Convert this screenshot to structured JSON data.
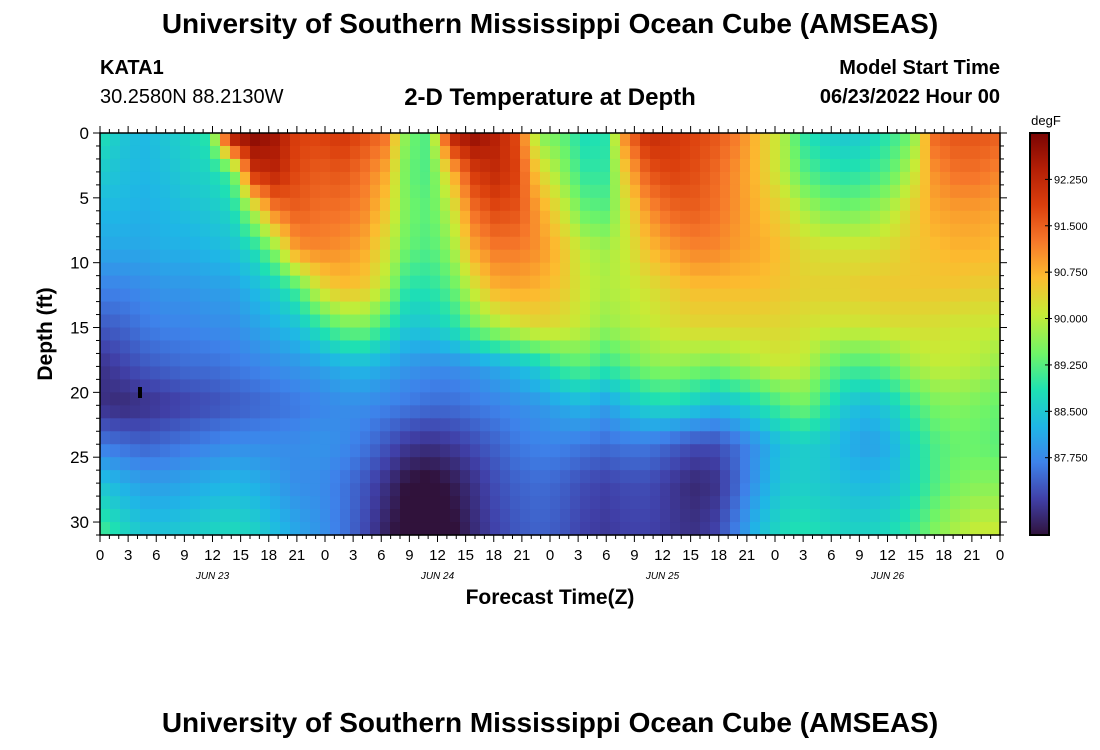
{
  "header": {
    "title": "University of Southern Mississippi Ocean Cube (AMSEAS)",
    "station": "KATA1",
    "coords": "30.2580N  88.2130W",
    "chart_title": "2-D Temperature at Depth",
    "start_label": "Model Start Time",
    "start_value": "06/23/2022 Hour 00"
  },
  "footer": {
    "title": "University of Southern Mississippi Ocean Cube (AMSEAS)"
  },
  "colors": {
    "colormap": [
      "#30123b",
      "#4040a8",
      "#3e82ea",
      "#1fb6e6",
      "#1ee0b3",
      "#6ef468",
      "#c6ec36",
      "#fcbc2f",
      "#f6782a",
      "#db3f0d",
      "#b41f06",
      "#7a0403"
    ]
  },
  "chart_data": {
    "type": "heatmap",
    "title": "2-D Temperature at Depth",
    "xlabel": "Forecast Time(Z)",
    "ylabel": "Depth (ft)",
    "x_hours": [
      0,
      3,
      6,
      9,
      12,
      15,
      18,
      21,
      24,
      27,
      30,
      33,
      36,
      39,
      42,
      45,
      48,
      51,
      54,
      57,
      60,
      63,
      66,
      69,
      72,
      75,
      78,
      81,
      84,
      87,
      90,
      93,
      96
    ],
    "xlim": [
      0,
      96
    ],
    "x_tick_labels": [
      "0",
      "3",
      "6",
      "9",
      "12",
      "15",
      "18",
      "21",
      "0",
      "3",
      "6",
      "9",
      "12",
      "15",
      "18",
      "21",
      "0",
      "3",
      "6",
      "9",
      "12",
      "15",
      "18",
      "21",
      "0",
      "3",
      "6",
      "9",
      "12",
      "15",
      "18",
      "21",
      "0"
    ],
    "day_labels": [
      {
        "hour": 12,
        "label": "JUN 23"
      },
      {
        "hour": 36,
        "label": "JUN 24"
      },
      {
        "hour": 60,
        "label": "JUN 25"
      },
      {
        "hour": 84,
        "label": "JUN 26"
      }
    ],
    "depths": [
      0,
      3,
      6,
      9,
      12,
      15,
      18,
      21,
      24,
      27,
      31
    ],
    "ylim": [
      0,
      31
    ],
    "y_ticks": [
      0,
      5,
      10,
      15,
      20,
      25,
      30
    ],
    "y_tick_labels": [
      "0",
      "5",
      "10",
      "15",
      "20",
      "25",
      "30"
    ],
    "values": [
      [
        88.9,
        88.5,
        88.3,
        88.5,
        88.7,
        89.0,
        92.8,
        92.9,
        92.6,
        91.8,
        91.8,
        92.0,
        91.7,
        91.3,
        89.5,
        89.2,
        92.4,
        92.8,
        92.4,
        91.7,
        89.6,
        89.4,
        88.8,
        88.9,
        91.3,
        92.2,
        92.0,
        91.8,
        91.6,
        91.2,
        90.6,
        90.0,
        89.0,
        88.6,
        88.5,
        88.6,
        89.0,
        89.5,
        91.4,
        91.6,
        91.6,
        91.5
      ],
      [
        88.6,
        88.4,
        88.3,
        88.4,
        88.6,
        88.7,
        89.2,
        92.1,
        92.3,
        91.7,
        91.5,
        91.6,
        91.3,
        90.8,
        89.4,
        89.2,
        90.6,
        91.9,
        92.2,
        91.8,
        90.4,
        89.7,
        89.0,
        89.0,
        90.6,
        91.6,
        91.8,
        91.7,
        91.4,
        91.0,
        90.6,
        90.0,
        89.3,
        89.0,
        88.9,
        89.0,
        89.3,
        90.0,
        91.0,
        91.3,
        91.3,
        91.1
      ],
      [
        88.3,
        88.3,
        88.2,
        88.3,
        88.4,
        88.5,
        88.7,
        89.9,
        91.2,
        91.5,
        91.3,
        91.3,
        91.1,
        90.5,
        89.5,
        89.3,
        90.0,
        91.3,
        91.7,
        91.6,
        90.9,
        90.2,
        89.4,
        89.3,
        90.2,
        91.0,
        91.4,
        91.5,
        91.3,
        91.0,
        90.7,
        90.4,
        89.9,
        89.6,
        89.5,
        89.6,
        89.9,
        90.4,
        90.8,
        90.9,
        90.9,
        90.8
      ],
      [
        88.1,
        88.1,
        88.1,
        88.2,
        88.2,
        88.3,
        88.4,
        88.8,
        89.7,
        91.0,
        91.1,
        91.0,
        90.8,
        90.2,
        89.4,
        89.2,
        89.7,
        90.8,
        91.2,
        91.2,
        91.0,
        90.6,
        90.0,
        89.8,
        90.1,
        90.6,
        90.9,
        91.1,
        91.1,
        90.9,
        90.8,
        90.6,
        90.3,
        90.2,
        90.2,
        90.2,
        90.3,
        90.5,
        90.6,
        90.7,
        90.7,
        90.6
      ],
      [
        87.7,
        87.7,
        87.8,
        87.9,
        87.9,
        88.0,
        88.0,
        88.3,
        88.6,
        89.2,
        90.2,
        90.6,
        90.5,
        89.9,
        88.9,
        88.9,
        89.3,
        90.1,
        90.7,
        90.8,
        90.7,
        90.5,
        90.1,
        89.9,
        90.0,
        90.2,
        90.4,
        90.6,
        90.6,
        90.6,
        90.6,
        90.5,
        90.4,
        90.4,
        90.4,
        90.5,
        90.5,
        90.5,
        90.5,
        90.5,
        90.4,
        90.4
      ],
      [
        87.3,
        87.4,
        87.6,
        87.7,
        87.7,
        87.8,
        87.8,
        88.0,
        88.2,
        88.4,
        88.9,
        89.4,
        89.5,
        89.0,
        88.5,
        88.5,
        88.8,
        89.4,
        89.8,
        90.1,
        90.3,
        90.2,
        90.0,
        89.7,
        89.9,
        90.0,
        90.2,
        90.3,
        90.3,
        90.3,
        90.3,
        90.3,
        90.2,
        90.1,
        90.1,
        90.1,
        90.2,
        90.2,
        90.2,
        90.1,
        90.1,
        90.0
      ],
      [
        86.9,
        87.1,
        87.3,
        87.4,
        87.5,
        87.5,
        87.6,
        87.7,
        87.8,
        87.9,
        88.0,
        88.2,
        88.3,
        88.1,
        87.9,
        87.8,
        87.8,
        87.9,
        88.1,
        88.3,
        88.6,
        89.1,
        89.3,
        89.0,
        89.3,
        89.6,
        89.7,
        89.6,
        89.5,
        89.7,
        89.9,
        90.1,
        90.0,
        89.5,
        89.2,
        89.2,
        89.4,
        89.8,
        90.0,
        90.0,
        89.9,
        89.7
      ],
      [
        86.9,
        86.8,
        86.9,
        87.0,
        87.1,
        87.2,
        87.3,
        87.4,
        87.5,
        87.6,
        87.7,
        87.8,
        87.8,
        87.7,
        87.6,
        87.5,
        87.5,
        87.6,
        87.7,
        87.8,
        87.9,
        88.1,
        88.3,
        88.0,
        88.4,
        88.7,
        88.8,
        88.6,
        88.3,
        88.5,
        88.8,
        89.2,
        89.5,
        89.0,
        88.5,
        88.3,
        88.6,
        89.1,
        89.5,
        89.6,
        89.5,
        89.4
      ],
      [
        87.6,
        87.5,
        87.4,
        87.5,
        87.6,
        87.7,
        87.8,
        87.8,
        87.8,
        87.8,
        87.9,
        87.8,
        87.6,
        87.3,
        87.0,
        86.9,
        87.0,
        87.2,
        87.4,
        87.6,
        87.7,
        87.7,
        87.6,
        87.5,
        87.6,
        87.6,
        87.4,
        87.2,
        87.2,
        87.5,
        87.9,
        88.4,
        88.6,
        88.5,
        88.2,
        88.0,
        88.2,
        88.7,
        89.2,
        89.4,
        89.4,
        89.3
      ],
      [
        88.5,
        88.2,
        88.0,
        88.0,
        88.1,
        88.2,
        88.3,
        88.2,
        88.0,
        87.8,
        87.8,
        87.6,
        87.3,
        86.9,
        86.5,
        86.4,
        86.6,
        86.9,
        87.2,
        87.4,
        87.5,
        87.4,
        87.2,
        87.1,
        87.2,
        87.2,
        87.0,
        86.8,
        86.9,
        87.4,
        88.0,
        88.5,
        88.6,
        88.5,
        88.4,
        88.3,
        88.4,
        88.7,
        89.2,
        89.5,
        89.6,
        89.6
      ],
      [
        89.2,
        88.8,
        88.5,
        88.5,
        88.6,
        88.7,
        88.8,
        88.7,
        88.4,
        88.1,
        87.9,
        87.6,
        87.2,
        86.7,
        86.3,
        86.2,
        86.4,
        86.8,
        87.1,
        87.3,
        87.4,
        87.3,
        87.1,
        87.0,
        87.1,
        87.1,
        87.0,
        86.9,
        87.1,
        87.7,
        88.4,
        88.8,
        88.9,
        88.8,
        88.7,
        88.7,
        88.8,
        89.1,
        89.6,
        89.9,
        90.1,
        90.1
      ]
    ],
    "colorbar": {
      "label": "degF",
      "range": [
        86.5,
        93.0
      ],
      "ticks": [
        87.75,
        88.5,
        89.25,
        90.0,
        90.75,
        91.5,
        92.25
      ],
      "tick_labels": [
        "87.750",
        "88.500",
        "89.250",
        "90.000",
        "90.750",
        "91.500",
        "92.250"
      ]
    },
    "marker": {
      "hour": 4,
      "depth": 20
    }
  }
}
